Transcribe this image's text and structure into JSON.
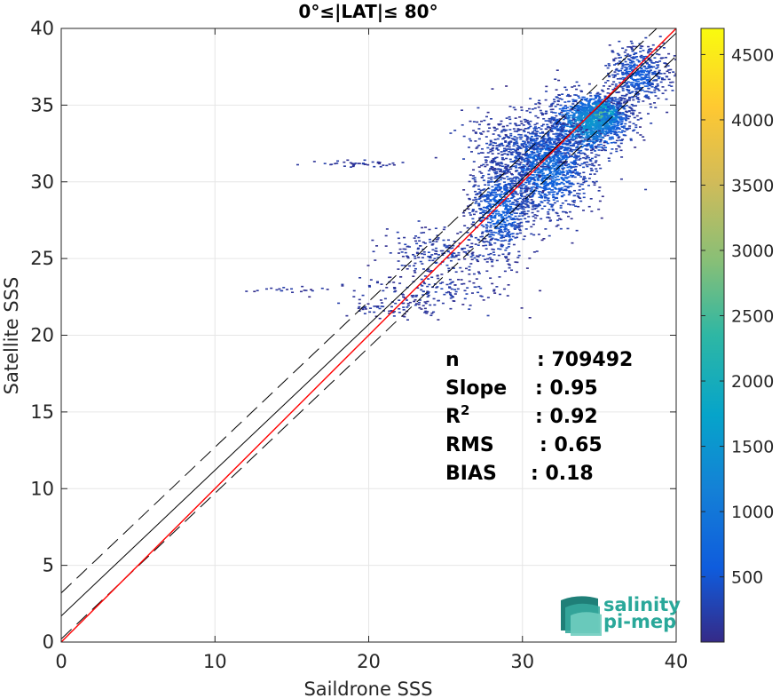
{
  "chart_data": {
    "type": "heatmap",
    "title": "0°≤|LAT|≤ 80°",
    "xlabel": "Saildrone SSS",
    "ylabel": "Satellite SSS",
    "xlim": [
      0,
      40
    ],
    "ylim": [
      0,
      40
    ],
    "x_ticks": [
      0,
      10,
      20,
      30,
      40
    ],
    "y_ticks": [
      0,
      5,
      10,
      15,
      20,
      25,
      30,
      35,
      40
    ],
    "grid": true,
    "colorbar": {
      "ticks": [
        500,
        1000,
        1500,
        2000,
        2500,
        3000,
        3500,
        4000,
        4500
      ],
      "range": [
        1,
        4700
      ],
      "colormap": "parula"
    },
    "stats": [
      {
        "label": "n",
        "value": ": 709492"
      },
      {
        "label": "Slope",
        "value": ": 0.95"
      },
      {
        "label": "R2",
        "value": ": 0.92"
      },
      {
        "label": "RMS",
        "value": ": 0.65"
      },
      {
        "label": "BIAS",
        "value": ": 0.18"
      }
    ],
    "lines": {
      "one_to_one": {
        "color": "#ff0000",
        "x": [
          0,
          40
        ],
        "y": [
          0,
          40
        ]
      },
      "fit": {
        "color": "#000000",
        "x": [
          0,
          40
        ],
        "y": [
          1.7,
          39.7
        ]
      },
      "fit_upper": {
        "color": "#000000",
        "dash": true,
        "x": [
          0,
          40
        ],
        "y": [
          3.2,
          41.2
        ]
      },
      "fit_lower": {
        "color": "#000000",
        "dash": true,
        "x": [
          0,
          40
        ],
        "y": [
          0.2,
          38.2
        ]
      }
    },
    "density_clusters": [
      {
        "x": 35.0,
        "y": 34.4,
        "sx": 0.8,
        "sy": 0.6,
        "n": 700,
        "c": 0.55
      },
      {
        "x": 34.2,
        "y": 33.8,
        "sx": 1.3,
        "sy": 1.0,
        "n": 900,
        "c": 0.3
      },
      {
        "x": 31.5,
        "y": 31.0,
        "sx": 1.5,
        "sy": 1.6,
        "n": 1200,
        "c": 0.15
      },
      {
        "x": 28.5,
        "y": 28.3,
        "sx": 1.0,
        "sy": 1.6,
        "n": 700,
        "c": 0.12
      },
      {
        "x": 37.5,
        "y": 37.0,
        "sx": 1.0,
        "sy": 1.0,
        "n": 500,
        "c": 0.1
      },
      {
        "x": 30.0,
        "y": 32.5,
        "sx": 2.0,
        "sy": 1.0,
        "n": 350,
        "c": 0.05
      },
      {
        "x": 24.5,
        "y": 25.5,
        "sx": 2.0,
        "sy": 0.8,
        "n": 200,
        "c": 0.03
      },
      {
        "x": 24.0,
        "y": 23.0,
        "sx": 2.5,
        "sy": 0.6,
        "n": 150,
        "c": 0.02
      },
      {
        "x": 21.5,
        "y": 21.8,
        "sx": 2.0,
        "sy": 0.3,
        "n": 80,
        "c": 0.01
      },
      {
        "x": 19.5,
        "y": 31.2,
        "sx": 1.5,
        "sy": 0.1,
        "n": 40,
        "c": 0.01
      },
      {
        "x": 14.5,
        "y": 23.0,
        "sx": 1.0,
        "sy": 0.1,
        "n": 20,
        "c": 0.01
      }
    ]
  },
  "logo": {
    "line1": "salinity",
    "line2": "pi-mep"
  }
}
